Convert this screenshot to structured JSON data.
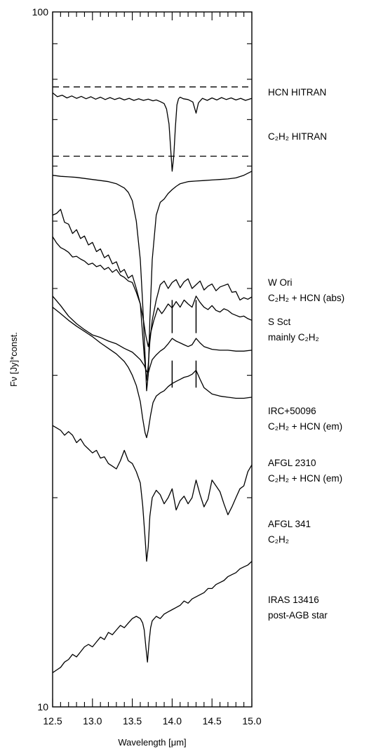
{
  "chart_data": {
    "type": "line",
    "title": "",
    "xlabel": "Wavelength [μm]",
    "ylabel": "Fν [Jy]*const.",
    "xlim": [
      12.5,
      15.0
    ],
    "ylim": [
      10,
      100
    ],
    "yscale": "log",
    "x_ticks": [
      "12.5",
      "13.0",
      "13.5",
      "14.0",
      "14.5",
      "15.0"
    ],
    "y_ticks": [
      "10",
      "100"
    ],
    "grid": false,
    "legend": "none",
    "reference_lines": [
      {
        "name": "hcn-continuum",
        "style": "dashed",
        "y": 78
      },
      {
        "name": "c2h2-continuum",
        "style": "dashed",
        "y": 62
      }
    ],
    "markers": [
      {
        "spectrum": "IRC+50096",
        "x": [
          14.0,
          14.3
        ],
        "y_low": 34.5,
        "y_high": 38.5
      },
      {
        "spectrum": "AFGL 2310",
        "x": [
          14.0,
          14.3
        ],
        "y_low": 28.8,
        "y_high": 31.5
      }
    ],
    "series": [
      {
        "name": "HCN HITRAN",
        "label_lines": [
          "HCN HITRAN"
        ],
        "x": [
          12.5,
          12.56,
          12.62,
          12.68,
          12.74,
          12.8,
          12.86,
          12.92,
          12.98,
          13.04,
          13.1,
          13.16,
          13.22,
          13.28,
          13.34,
          13.4,
          13.46,
          13.52,
          13.58,
          13.64,
          13.7,
          13.76,
          13.8,
          13.85,
          13.9,
          13.93,
          13.96,
          13.98,
          14.0,
          14.02,
          14.04,
          14.06,
          14.08,
          14.1,
          14.14,
          14.2,
          14.26,
          14.3,
          14.33,
          14.38,
          14.44,
          14.5,
          14.56,
          14.62,
          14.68,
          14.74,
          14.8,
          14.86,
          14.92,
          15.0
        ],
        "y": [
          76.5,
          75.5,
          75.9,
          75.2,
          75.7,
          75.1,
          75.6,
          75.0,
          75.5,
          74.9,
          75.4,
          74.8,
          75.3,
          74.8,
          75.2,
          74.7,
          75.1,
          74.6,
          75.0,
          74.6,
          74.9,
          74.5,
          74.7,
          74.3,
          73.8,
          72.5,
          69.0,
          64.0,
          59.0,
          62.0,
          68.0,
          73.5,
          75.0,
          75.4,
          75.0,
          74.8,
          74.2,
          71.5,
          74.0,
          75.1,
          74.6,
          75.2,
          74.7,
          75.3,
          74.8,
          75.2,
          74.7,
          75.1,
          74.6,
          75.1
        ]
      },
      {
        "name": "C2H2 HITRAN",
        "label_lines": [
          "C₂H₂ HITRAN"
        ],
        "x": [
          12.5,
          12.6,
          12.7,
          12.8,
          12.9,
          13.0,
          13.1,
          13.2,
          13.3,
          13.4,
          13.45,
          13.5,
          13.55,
          13.6,
          13.63,
          13.66,
          13.68,
          13.7,
          13.72,
          13.75,
          13.8,
          13.85,
          13.9,
          13.95,
          14.0,
          14.05,
          14.1,
          14.2,
          14.3,
          14.4,
          14.5,
          14.6,
          14.7,
          14.8,
          14.9,
          15.0
        ],
        "y": [
          58.2,
          58.0,
          57.9,
          57.8,
          57.6,
          57.4,
          57.2,
          57.0,
          56.6,
          55.8,
          55.0,
          53.5,
          50.0,
          44.0,
          38.0,
          32.0,
          28.5,
          30.0,
          36.0,
          44.0,
          51.0,
          53.2,
          53.8,
          54.8,
          55.5,
          56.1,
          56.6,
          57.0,
          57.1,
          57.2,
          57.3,
          57.4,
          57.5,
          57.7,
          58.2,
          59.0
        ]
      },
      {
        "name": "W Ori",
        "label_lines": [
          "W Ori",
          "C₂H₂ +  HCN (abs)"
        ],
        "x": [
          12.5,
          12.55,
          12.6,
          12.65,
          12.7,
          12.75,
          12.8,
          12.85,
          12.9,
          12.95,
          13.0,
          13.05,
          13.1,
          13.15,
          13.2,
          13.25,
          13.3,
          13.35,
          13.4,
          13.45,
          13.5,
          13.55,
          13.6,
          13.65,
          13.68,
          13.7,
          13.72,
          13.75,
          13.8,
          13.85,
          13.9,
          13.95,
          14.0,
          14.05,
          14.1,
          14.15,
          14.2,
          14.25,
          14.3,
          14.35,
          14.4,
          14.45,
          14.5,
          14.55,
          14.6,
          14.65,
          14.7,
          14.75,
          14.8,
          14.85,
          14.9,
          14.95,
          15.0
        ],
        "y": [
          51.0,
          51.3,
          52.0,
          49.8,
          49.5,
          48.0,
          48.6,
          47.2,
          47.6,
          46.2,
          46.6,
          45.2,
          45.6,
          44.3,
          44.7,
          43.4,
          43.7,
          42.2,
          42.6,
          41.4,
          41.8,
          40.0,
          38.0,
          32.0,
          29.5,
          31.0,
          33.5,
          36.0,
          38.5,
          40.5,
          41.0,
          40.0,
          40.8,
          41.2,
          40.1,
          40.9,
          41.3,
          40.0,
          40.5,
          41.0,
          39.8,
          40.3,
          40.6,
          39.7,
          40.2,
          40.4,
          40.6,
          39.5,
          39.6,
          38.5,
          38.8,
          38.6,
          38.9
        ]
      },
      {
        "name": "S Sct",
        "label_lines": [
          "S Sct",
          "mainly C₂H₂"
        ],
        "x": [
          12.5,
          12.55,
          12.6,
          12.65,
          12.7,
          12.75,
          12.8,
          12.85,
          12.9,
          12.95,
          13.0,
          13.05,
          13.1,
          13.15,
          13.2,
          13.25,
          13.3,
          13.35,
          13.4,
          13.45,
          13.5,
          13.55,
          13.6,
          13.64,
          13.67,
          13.7,
          13.73,
          13.77,
          13.82,
          13.87,
          13.9,
          13.95,
          14.0,
          14.05,
          14.1,
          14.15,
          14.2,
          14.25,
          14.3,
          14.35,
          14.4,
          14.45,
          14.5,
          14.55,
          14.6,
          14.65,
          14.7,
          14.75,
          14.8,
          14.85,
          14.9,
          14.95,
          15.0
        ],
        "y": [
          47.5,
          46.5,
          45.8,
          45.5,
          45.1,
          44.4,
          44.5,
          44.1,
          43.8,
          43.3,
          43.5,
          43.0,
          43.2,
          42.6,
          42.9,
          42.2,
          42.6,
          41.8,
          41.5,
          41.0,
          40.8,
          39.5,
          38.0,
          36.0,
          34.2,
          33.0,
          34.5,
          36.0,
          37.5,
          36.8,
          37.2,
          38.0,
          37.5,
          38.3,
          37.6,
          38.5,
          38.0,
          37.6,
          39.0,
          38.2,
          37.6,
          37.3,
          37.8,
          37.2,
          37.0,
          37.4,
          37.2,
          36.8,
          36.6,
          36.4,
          36.5,
          36.2,
          36.0
        ]
      },
      {
        "name": "IRC+50096",
        "label_lines": [
          "IRC+50096",
          "C₂H₂ + HCN (em)"
        ],
        "x": [
          12.5,
          12.6,
          12.7,
          12.8,
          12.9,
          13.0,
          13.1,
          13.2,
          13.3,
          13.4,
          13.5,
          13.55,
          13.6,
          13.65,
          13.68,
          13.7,
          13.72,
          13.75,
          13.8,
          13.85,
          13.9,
          13.95,
          14.0,
          14.05,
          14.1,
          14.15,
          14.2,
          14.25,
          14.3,
          14.35,
          14.4,
          14.5,
          14.6,
          14.7,
          14.8,
          14.9,
          15.0
        ],
        "y": [
          39.0,
          37.8,
          36.5,
          35.6,
          34.9,
          34.3,
          34.0,
          33.6,
          33.3,
          32.8,
          32.4,
          32.0,
          31.6,
          31.0,
          30.4,
          30.2,
          30.8,
          31.6,
          32.1,
          32.5,
          32.8,
          33.3,
          33.9,
          33.6,
          33.4,
          33.2,
          33.0,
          33.2,
          33.9,
          33.4,
          33.0,
          32.7,
          32.6,
          32.6,
          32.5,
          32.5,
          32.6
        ]
      },
      {
        "name": "AFGL 2310",
        "label_lines": [
          "AFGL 2310",
          "C₂H₂ + HCN (em)"
        ],
        "x": [
          12.5,
          12.6,
          12.7,
          12.8,
          12.9,
          13.0,
          13.1,
          13.2,
          13.3,
          13.4,
          13.45,
          13.5,
          13.55,
          13.6,
          13.63,
          13.66,
          13.68,
          13.7,
          13.73,
          13.76,
          13.8,
          13.85,
          13.9,
          13.95,
          14.0,
          14.05,
          14.1,
          14.15,
          14.2,
          14.25,
          14.3,
          14.35,
          14.4,
          14.5,
          14.6,
          14.7,
          14.8,
          14.9,
          15.0
        ],
        "y": [
          37.6,
          36.8,
          36.0,
          35.3,
          34.7,
          34.1,
          33.4,
          32.8,
          32.2,
          31.4,
          30.8,
          30.0,
          29.0,
          27.5,
          26.0,
          24.8,
          24.4,
          25.0,
          26.3,
          27.4,
          28.0,
          28.3,
          28.5,
          28.9,
          29.2,
          29.4,
          29.6,
          29.8,
          29.9,
          30.1,
          30.5,
          29.6,
          28.8,
          28.2,
          28.0,
          27.9,
          27.8,
          27.8,
          27.9
        ]
      },
      {
        "name": "AFGL 341",
        "label_lines": [
          "AFGL 341",
          "C₂H₂"
        ],
        "x": [
          12.5,
          12.55,
          12.6,
          12.65,
          12.7,
          12.75,
          12.8,
          12.85,
          12.9,
          12.95,
          13.0,
          13.05,
          13.1,
          13.15,
          13.2,
          13.25,
          13.3,
          13.35,
          13.4,
          13.45,
          13.5,
          13.55,
          13.6,
          13.63,
          13.66,
          13.68,
          13.7,
          13.72,
          13.75,
          13.8,
          13.85,
          13.9,
          13.95,
          14.0,
          14.05,
          14.1,
          14.15,
          14.2,
          14.25,
          14.3,
          14.35,
          14.4,
          14.45,
          14.5,
          14.55,
          14.6,
          14.65,
          14.7,
          14.75,
          14.8,
          14.85,
          14.9,
          14.95,
          15.0
        ],
        "y": [
          25.4,
          25.2,
          25.0,
          24.6,
          24.9,
          24.6,
          24.0,
          24.3,
          23.8,
          23.5,
          23.2,
          23.4,
          22.8,
          22.9,
          22.4,
          22.2,
          22.0,
          22.6,
          23.4,
          22.6,
          22.4,
          21.8,
          21.0,
          19.5,
          17.5,
          16.2,
          17.0,
          18.8,
          20.0,
          20.5,
          20.2,
          19.6,
          20.0,
          20.6,
          19.2,
          19.8,
          20.1,
          19.6,
          20.0,
          21.2,
          20.2,
          19.4,
          19.9,
          21.2,
          20.8,
          20.4,
          19.6,
          18.9,
          19.4,
          20.0,
          20.6,
          20.8,
          21.8,
          22.3
        ]
      },
      {
        "name": "IRAS 13416",
        "label_lines": [
          "IRAS 13416",
          "post-AGB star"
        ],
        "x": [
          12.5,
          12.55,
          12.6,
          12.65,
          12.7,
          12.75,
          12.8,
          12.85,
          12.9,
          12.95,
          13.0,
          13.05,
          13.1,
          13.15,
          13.2,
          13.25,
          13.3,
          13.35,
          13.4,
          13.45,
          13.5,
          13.55,
          13.6,
          13.63,
          13.65,
          13.67,
          13.69,
          13.71,
          13.73,
          13.75,
          13.8,
          13.85,
          13.9,
          13.95,
          14.0,
          14.05,
          14.1,
          14.15,
          14.2,
          14.25,
          14.3,
          14.35,
          14.4,
          14.45,
          14.5,
          14.55,
          14.6,
          14.65,
          14.7,
          14.75,
          14.8,
          14.85,
          14.9,
          14.95,
          15.0
        ],
        "y": [
          11.2,
          11.3,
          11.4,
          11.6,
          11.7,
          11.9,
          11.8,
          12.0,
          12.2,
          12.3,
          12.2,
          12.4,
          12.6,
          12.5,
          12.8,
          12.7,
          12.9,
          13.1,
          13.0,
          13.2,
          13.4,
          13.5,
          13.4,
          13.2,
          12.9,
          12.2,
          11.6,
          12.4,
          13.0,
          13.3,
          13.5,
          13.4,
          13.6,
          13.7,
          13.8,
          13.9,
          14.0,
          14.2,
          14.1,
          14.3,
          14.4,
          14.5,
          14.6,
          14.8,
          14.8,
          15.0,
          15.1,
          15.2,
          15.4,
          15.5,
          15.6,
          15.8,
          15.9,
          16.0,
          16.2
        ]
      }
    ]
  }
}
